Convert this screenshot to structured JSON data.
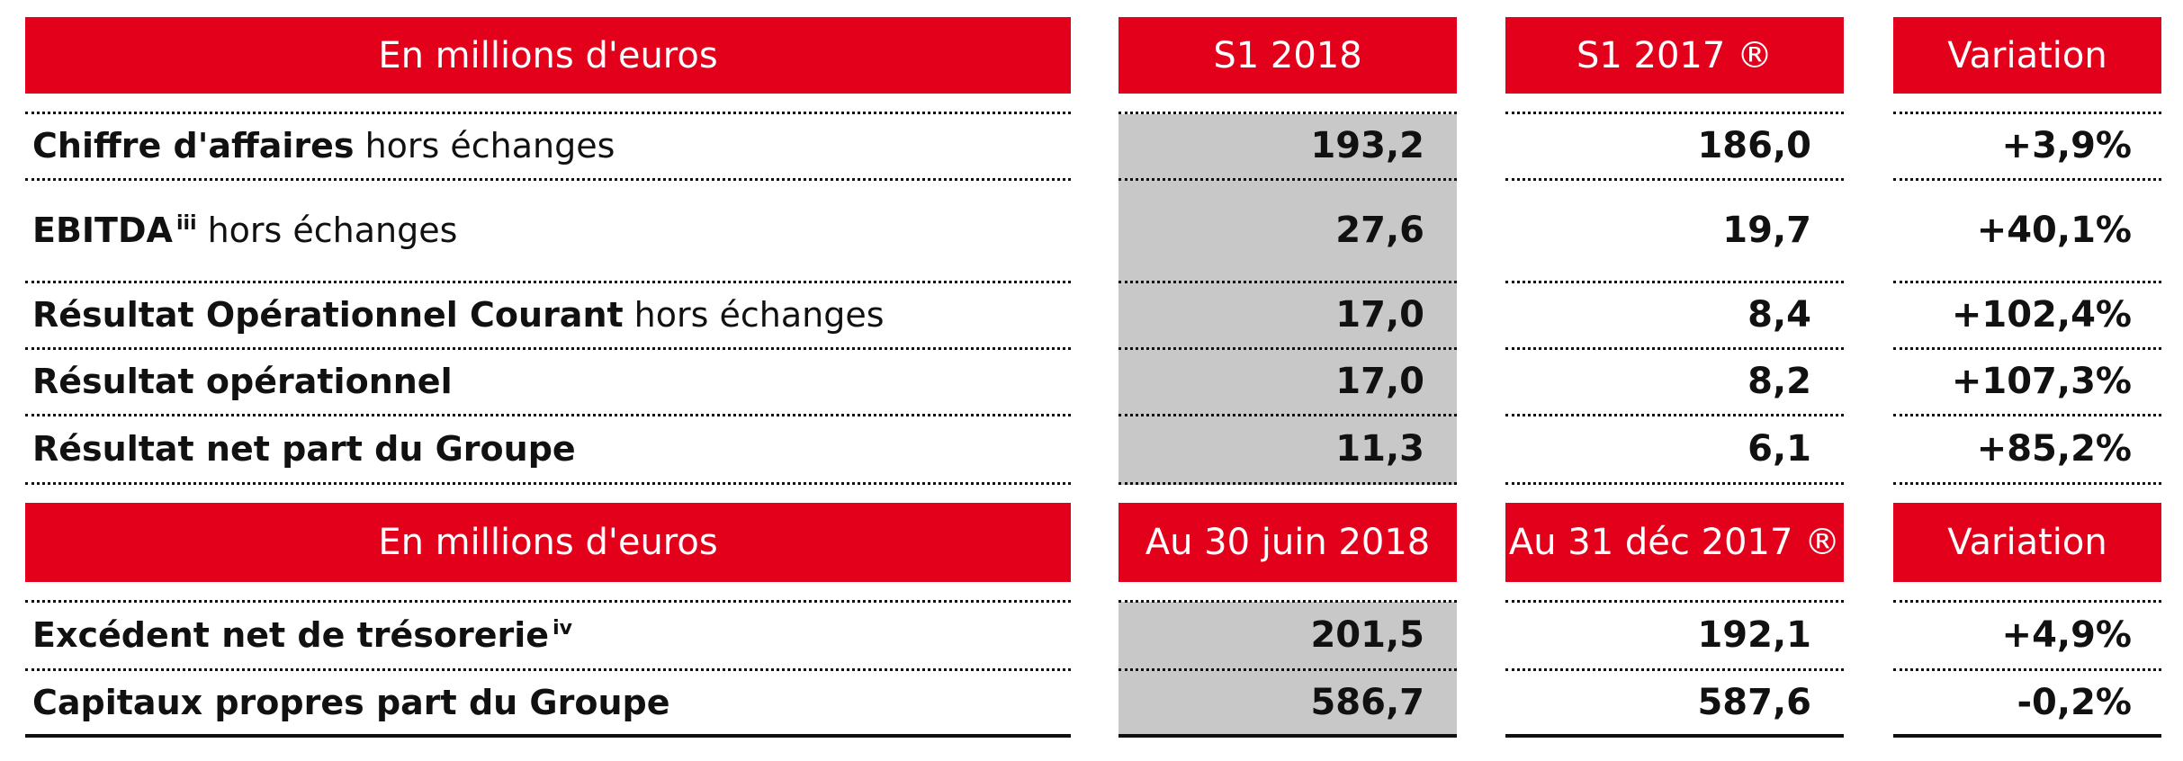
{
  "header1": {
    "label": "En millions d'euros",
    "col1": "S1 2018",
    "col2": "S1 2017 ®",
    "col3": "Variation"
  },
  "rows1": [
    {
      "bold": "Chiffre d'affaires",
      "normal": "hors échanges",
      "sup": "",
      "v1": "193,2",
      "v2": "186,0",
      "v3": "+3,9%"
    },
    {
      "bold": "EBITDA",
      "normal": "hors échanges",
      "sup": "iii",
      "v1": "27,6",
      "v2": "19,7",
      "v3": "+40,1%"
    },
    {
      "bold": "Résultat Opérationnel Courant",
      "normal": "hors échanges",
      "sup": "",
      "v1": "17,0",
      "v2": "8,4",
      "v3": "+102,4%"
    },
    {
      "bold": "Résultat opérationnel",
      "normal": "",
      "sup": "",
      "v1": "17,0",
      "v2": "8,2",
      "v3": "+107,3%"
    },
    {
      "bold": "Résultat net part du Groupe",
      "normal": "",
      "sup": "",
      "v1": "11,3",
      "v2": "6,1",
      "v3": "+85,2%"
    }
  ],
  "header2": {
    "label": "En millions d'euros",
    "col1": "Au 30 juin 2018",
    "col2": "Au 31 déc 2017 ®",
    "col3": "Variation"
  },
  "rows2": [
    {
      "bold": "Excédent net de trésorerie",
      "normal": "",
      "sup": "iv",
      "v1": "201,5",
      "v2": "192,1",
      "v3": "+4,9%"
    },
    {
      "bold": "Capitaux propres part du Groupe",
      "normal": "",
      "sup": "",
      "v1": "586,7",
      "v2": "587,6",
      "v3": "-0,2%"
    }
  ]
}
